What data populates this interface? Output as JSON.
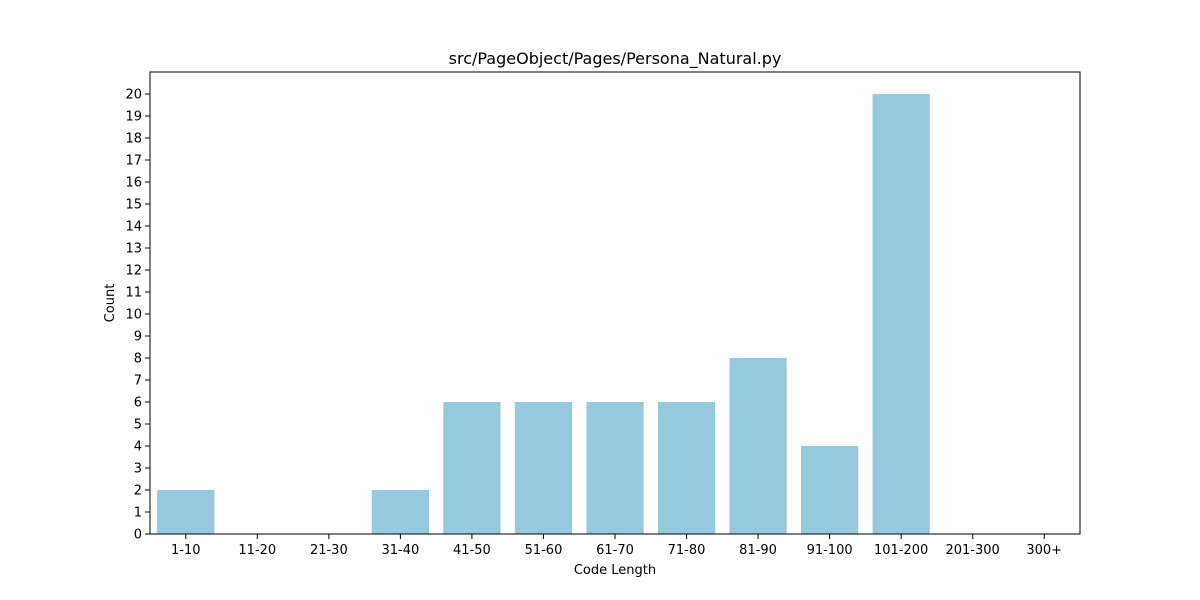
{
  "chart_data": {
    "type": "bar",
    "title": "src/PageObject/Pages/Persona_Natural.py",
    "xlabel": "Code Length",
    "ylabel": "Count",
    "categories": [
      "1-10",
      "11-20",
      "21-30",
      "31-40",
      "41-50",
      "51-60",
      "61-70",
      "71-80",
      "81-90",
      "91-100",
      "101-200",
      "201-300",
      "300+"
    ],
    "values": [
      2,
      0,
      0,
      2,
      6,
      6,
      6,
      6,
      8,
      4,
      20,
      0,
      0
    ],
    "ylim": [
      0,
      21
    ],
    "yticks": [
      0,
      1,
      2,
      3,
      4,
      5,
      6,
      7,
      8,
      9,
      10,
      11,
      12,
      13,
      14,
      15,
      16,
      17,
      18,
      19,
      20
    ],
    "bar_color": "#96c9dd",
    "grid": false,
    "legend": "none"
  }
}
